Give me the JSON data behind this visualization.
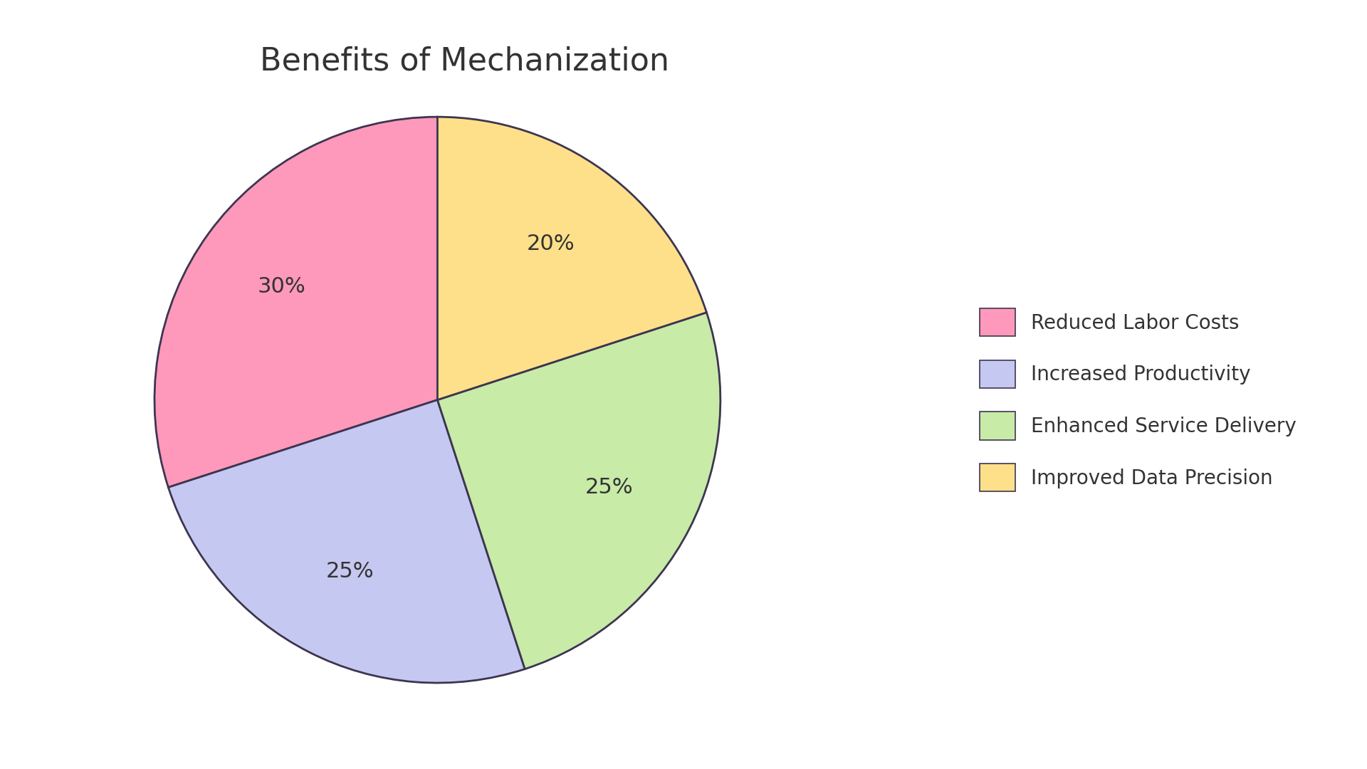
{
  "title": "Benefits of Mechanization",
  "labels": [
    "Reduced Labor Costs",
    "Increased Productivity",
    "Enhanced Service Delivery",
    "Improved Data Precision"
  ],
  "values": [
    30,
    25,
    25,
    20
  ],
  "colors": [
    "#FF99BB",
    "#C5C8F0",
    "#C8EBA8",
    "#FFE08A"
  ],
  "edge_color": "#3D3550",
  "edge_linewidth": 2.0,
  "title_fontsize": 32,
  "autopct_fontsize": 22,
  "legend_fontsize": 20,
  "background_color": "#FFFFFF",
  "text_color": "#333333",
  "startangle": 90,
  "pctdistance": 0.68
}
